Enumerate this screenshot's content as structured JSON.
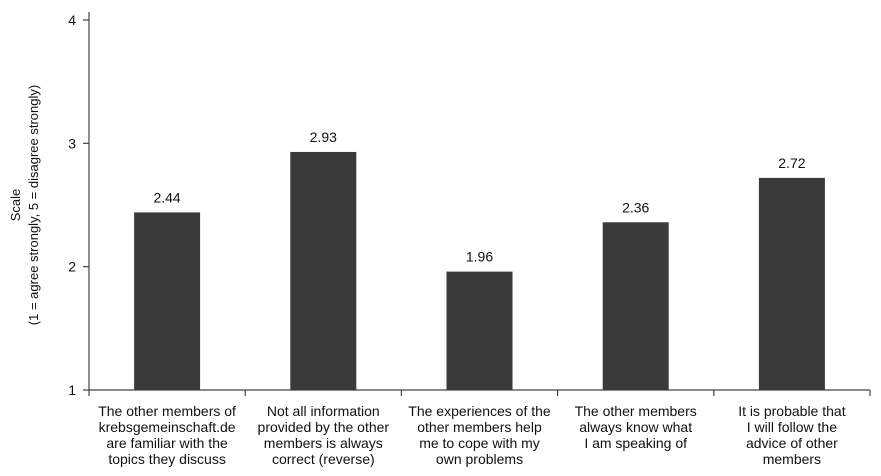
{
  "chart_data": {
    "type": "bar",
    "categories": [
      [
        "The other members of",
        "krebsgemeinschaft.de",
        "are familiar with the",
        "topics they discuss"
      ],
      [
        "Not all information",
        "provided by the other",
        "members is always",
        "correct (reverse)"
      ],
      [
        "The experiences of the",
        "other members help",
        "me to cope with my",
        "own problems"
      ],
      [
        "The other members",
        "always know what",
        "I am speaking of"
      ],
      [
        "It is probable that",
        "I will follow the",
        "advice of other",
        "members"
      ]
    ],
    "values": [
      2.44,
      2.93,
      1.96,
      2.36,
      2.72
    ],
    "value_labels": [
      "2.44",
      "2.93",
      "1.96",
      "2.36",
      "2.72"
    ],
    "ylabel": [
      "Scale",
      "(1 = agree strongly, 5 = disagree strongly)"
    ],
    "ylim": [
      1,
      4
    ],
    "yticks": [
      "1",
      "2",
      "3",
      "4"
    ],
    "grid": false,
    "bar_color": "#3a3a3a"
  }
}
